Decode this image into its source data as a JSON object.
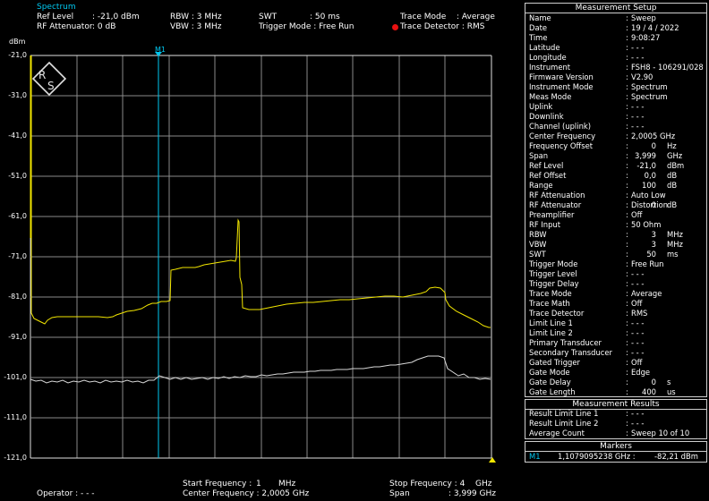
{
  "top_left": {
    "title": "Spectrum",
    "ref_level_label": "Ref Level",
    "ref_level_value": ": -21,0 dBm",
    "rf_att_label": "RF Attenuator",
    "rf_att_value": ":  0    dB"
  },
  "top_mid": {
    "rbw": "RBW : 3 MHz",
    "vbw": "VBW : 3 MHz",
    "swt_label": "SWT",
    "swt_value": ": 50 ms",
    "trigger": "Trigger Mode : Free Run"
  },
  "top_right": {
    "trace_mode_label": "Trace Mode",
    "trace_mode_value": ": Average",
    "trace_det": "Trace Detector : RMS",
    "trace_det_color": "#e81010"
  },
  "plot": {
    "unit": "dBm",
    "marker_label": "M1",
    "y_ticks": [
      "-21,0",
      "-31,0",
      "-41,0",
      "-51,0",
      "-61,0",
      "-71,0",
      "-81,0",
      "-91,0",
      "-101,0",
      "-111,0",
      "-121,0"
    ]
  },
  "bottom": {
    "start_label": "Start Frequency :",
    "start_num": "1",
    "start_unit": "MHz",
    "center_label": "Center Frequency : 2,0005 GHz",
    "stop_label": "Stop Frequency : 4",
    "stop_unit": "GHz",
    "span_label": "Span",
    "span_value": ": 3,999 GHz",
    "operator": "Operator : - - -"
  },
  "setup": {
    "title": "Measurement Setup",
    "rows": [
      {
        "n": "Name",
        "v": "Sweep"
      },
      {
        "n": "Date",
        "v": "19 / 4 / 2022"
      },
      {
        "n": "Time",
        "v": "9:08:27"
      },
      {
        "n": "Latitude",
        "v": "- - -"
      },
      {
        "n": "Longitude",
        "v": "- - -"
      },
      {
        "n": "Instrument",
        "v": "FSH8 - 106291/028"
      },
      {
        "n": "Firmware Version",
        "v": "V2.90"
      },
      {
        "n": "Instrument Mode",
        "v": "Spectrum"
      },
      {
        "n": "Meas Mode",
        "v": "Spectrum"
      },
      {
        "n": "Uplink",
        "v": "- - -"
      },
      {
        "n": "Downlink",
        "v": "- - -"
      },
      {
        "n": "Channel (uplink)",
        "v": "- - -"
      },
      {
        "n": "Center Frequency",
        "v": "2,0005 GHz"
      },
      {
        "n": "Frequency Offset",
        "num": "0",
        "u": "Hz"
      },
      {
        "n": "Span",
        "num": "3,999",
        "u": "GHz"
      },
      {
        "n": "Ref Level",
        "num": "-21,0",
        "u": "dBm"
      },
      {
        "n": "Ref Offset",
        "num": "0,0",
        "u": "dB"
      },
      {
        "n": "Range",
        "num": "100",
        "u": "dB"
      },
      {
        "n": "RF Attenuation",
        "v": "Auto Low Distortion"
      },
      {
        "n": "RF Attenuator",
        "num": "0",
        "u": "dB"
      },
      {
        "n": "Preamplifier",
        "v": "Off"
      },
      {
        "n": "RF Input",
        "v": "50 Ohm"
      },
      {
        "n": "RBW",
        "num": "3",
        "u": "MHz"
      },
      {
        "n": "VBW",
        "num": "3",
        "u": "MHz"
      },
      {
        "n": "SWT",
        "num": "50",
        "u": "ms"
      },
      {
        "n": "Trigger Mode",
        "v": "Free Run"
      },
      {
        "n": "Trigger Level",
        "v": "- - -"
      },
      {
        "n": "Trigger Delay",
        "v": "- - -"
      },
      {
        "n": "Trace Mode",
        "v": "Average"
      },
      {
        "n": "Trace Math",
        "v": "Off"
      },
      {
        "n": "Trace Detector",
        "v": "RMS"
      },
      {
        "n": "Limit Line 1",
        "v": "- - -"
      },
      {
        "n": "Limit Line 2",
        "v": "- - -"
      },
      {
        "n": "Primary Transducer",
        "v": "- - -"
      },
      {
        "n": "Secondary Transducer",
        "v": "- - -"
      },
      {
        "n": "Gated Trigger",
        "v": "Off"
      },
      {
        "n": "Gate Mode",
        "v": "Edge"
      },
      {
        "n": "Gate Delay",
        "num": "0",
        "u": "s"
      },
      {
        "n": "Gate Length",
        "num": "400",
        "u": "us"
      }
    ]
  },
  "results": {
    "title": "Measurement Results",
    "rows": [
      {
        "n": "Result Limit Line 1",
        "v": "- - -"
      },
      {
        "n": "Result Limit Line 2",
        "v": "- - -"
      },
      {
        "n": "Average Count",
        "v": "Sweep 10 of 10"
      }
    ]
  },
  "markers": {
    "title": "Markers",
    "name": "M1",
    "freq": "1,1079095238 GHz :",
    "level": "-82,21 dBm"
  }
}
